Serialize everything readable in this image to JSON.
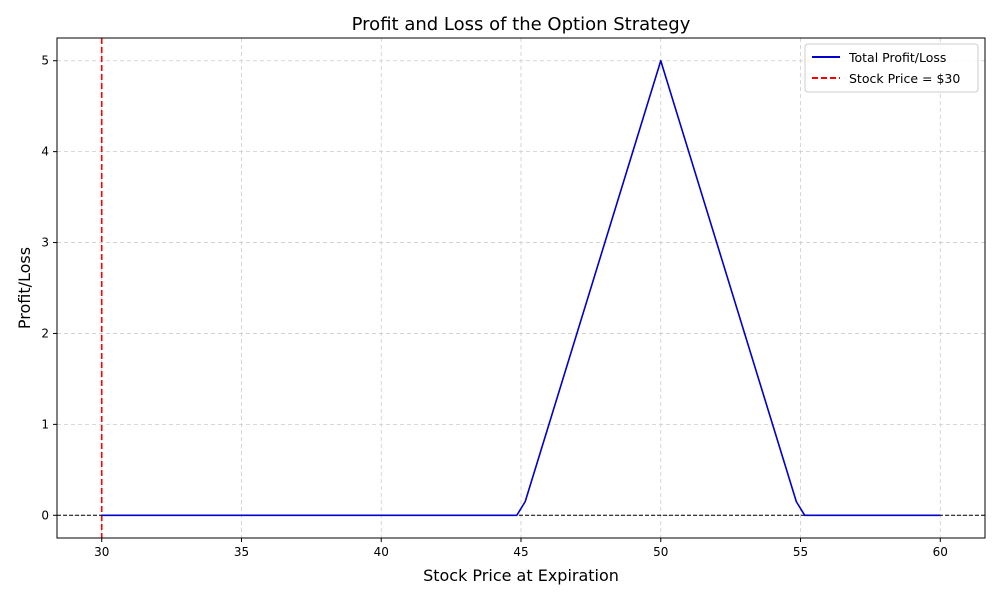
{
  "chart_data": {
    "type": "line",
    "title": "Profit and Loss of the Option Strategy",
    "xlabel": "Stock Price at Expiration",
    "ylabel": "Profit/Loss",
    "xlim": [
      28.4,
      61.6
    ],
    "ylim": [
      -0.25,
      5.25
    ],
    "xticks": [
      30,
      35,
      40,
      45,
      50,
      55,
      60
    ],
    "yticks": [
      0,
      1,
      2,
      3,
      4,
      5
    ],
    "grid": true,
    "legend_position": "top-right",
    "series": [
      {
        "name": "Total Profit/Loss",
        "color": "#0000cc",
        "style": "solid",
        "x": [
          30,
          44.85,
          45.15,
          50,
          54.85,
          55.15,
          60
        ],
        "y": [
          0,
          0,
          0.15,
          5,
          0.15,
          0,
          0
        ]
      }
    ],
    "reference_lines": [
      {
        "name": "Stock Price = $30",
        "orientation": "vertical",
        "value": 30,
        "color": "#ff0000",
        "style": "dashed"
      },
      {
        "name": "",
        "orientation": "horizontal",
        "value": 0,
        "color": "#000000",
        "style": "dashed"
      }
    ]
  }
}
